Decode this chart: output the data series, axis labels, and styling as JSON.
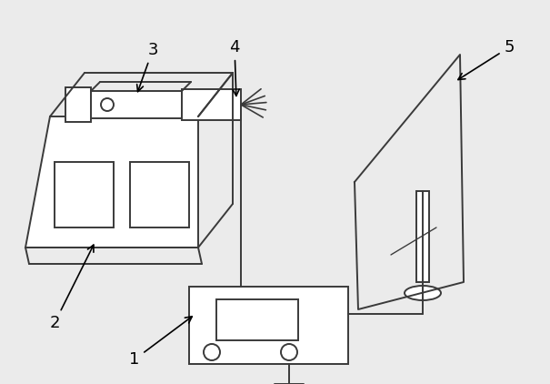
{
  "bg_color": "#ebebeb",
  "line_color": "#3a3a3a",
  "lw": 1.4
}
